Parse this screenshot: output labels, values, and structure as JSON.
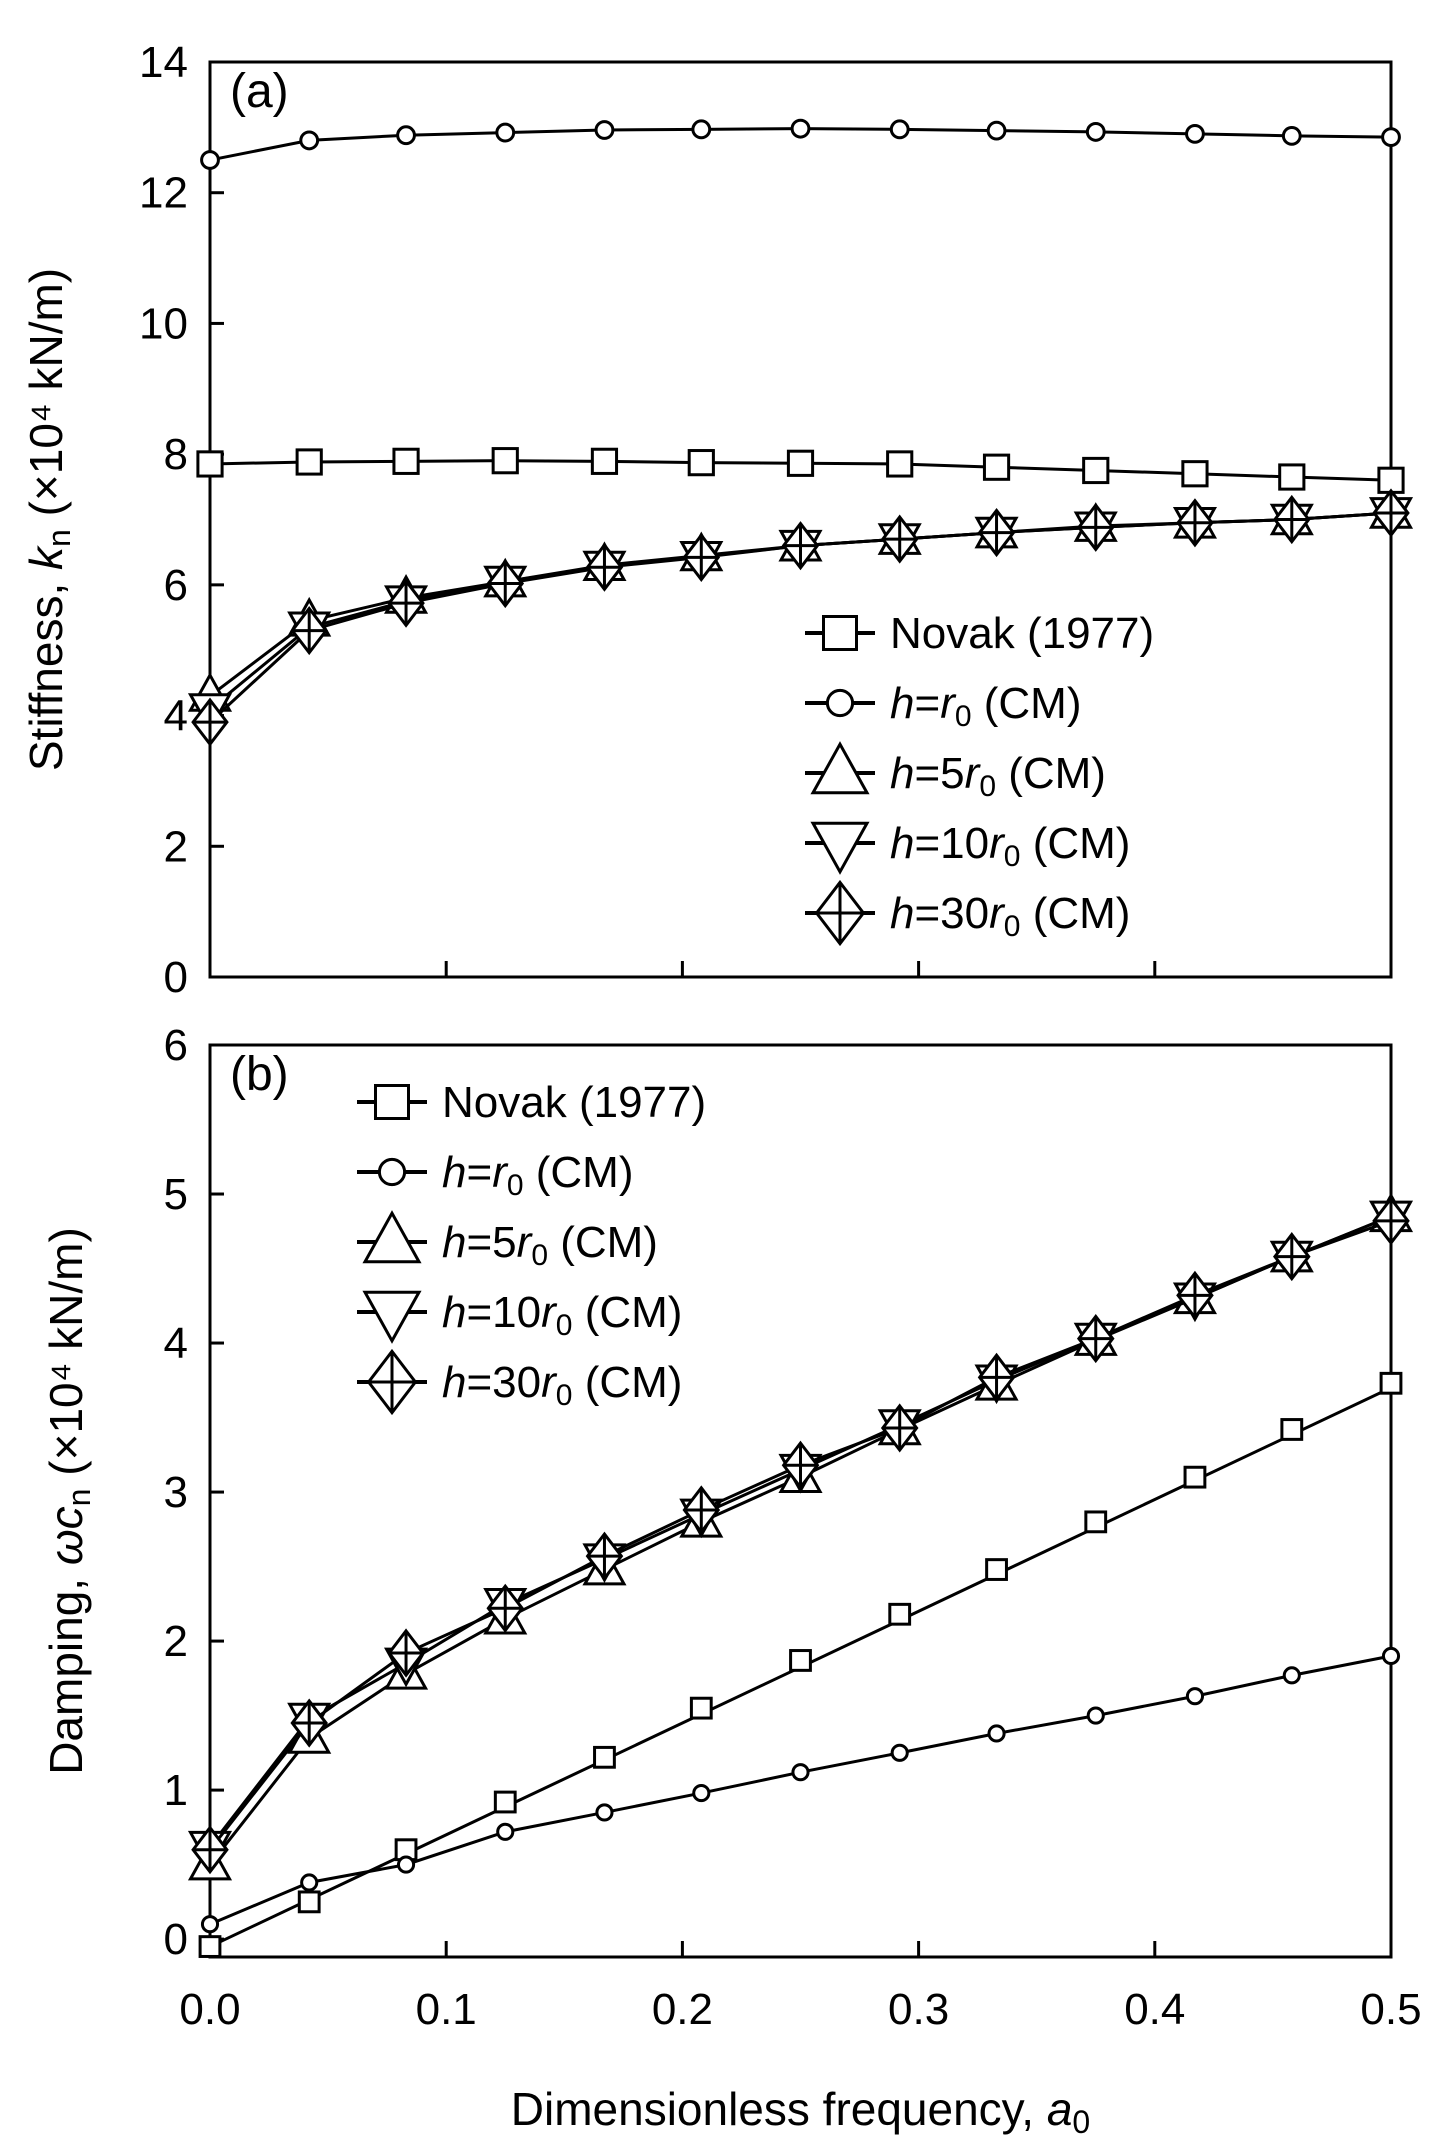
{
  "chart_data": [
    {
      "type": "line",
      "panel_label": "(a)",
      "ylabel": {
        "pre": "Stiffness, ",
        "var": "k",
        "sub": "n",
        "post": " (×10⁴ kN/m)"
      },
      "xlabel": "",
      "ylim": [
        0,
        14
      ],
      "yticks": [
        "0",
        "2",
        "4",
        "6",
        "8",
        "10",
        "12",
        "14"
      ],
      "ytick_values": [
        0,
        2,
        4,
        6,
        8,
        10,
        12,
        14
      ],
      "xlim": [
        0,
        0.5
      ],
      "xtick_values": [
        0,
        0.1,
        0.2,
        0.3,
        0.4,
        0.5
      ],
      "show_xtick_labels": false,
      "legend": "bottom-right",
      "x": [
        0,
        0.042,
        0.083,
        0.125,
        0.167,
        0.208,
        0.25,
        0.292,
        0.333,
        0.375,
        0.417,
        0.458,
        0.5
      ],
      "series": [
        {
          "marker": "square",
          "legend": {
            "plain": "Novak (1977)"
          },
          "values": [
            7.85,
            7.88,
            7.89,
            7.9,
            7.89,
            7.87,
            7.86,
            7.85,
            7.8,
            7.75,
            7.7,
            7.65,
            7.6
          ]
        },
        {
          "marker": "circle",
          "legend": {
            "h": "h",
            "eq": "=",
            "r": "r",
            "sub": "0",
            "post": " (CM)"
          },
          "values": [
            12.5,
            12.8,
            12.88,
            12.92,
            12.96,
            12.97,
            12.98,
            12.97,
            12.95,
            12.93,
            12.9,
            12.87,
            12.85
          ]
        },
        {
          "marker": "triangle-up",
          "legend": {
            "h": "h",
            "eq": "=5",
            "r": "r",
            "sub": "0",
            "post": " (CM)"
          },
          "values": [
            4.3,
            5.45,
            5.8,
            6.05,
            6.3,
            6.45,
            6.6,
            6.7,
            6.8,
            6.9,
            6.95,
            7.0,
            7.1
          ]
        },
        {
          "marker": "triangle-down",
          "legend": {
            "h": "h",
            "eq": "=10",
            "r": "r",
            "sub": "0",
            "post": " (CM)"
          },
          "values": [
            4.1,
            5.35,
            5.75,
            6.05,
            6.28,
            6.43,
            6.6,
            6.7,
            6.8,
            6.88,
            6.95,
            7.0,
            7.1
          ]
        },
        {
          "marker": "diamond-cross",
          "legend": {
            "h": "h",
            "eq": "=30",
            "r": "r",
            "sub": "0",
            "post": " (CM)"
          },
          "values": [
            3.9,
            5.3,
            5.72,
            6.02,
            6.27,
            6.42,
            6.6,
            6.7,
            6.8,
            6.88,
            6.95,
            7.0,
            7.1
          ]
        }
      ]
    },
    {
      "type": "line",
      "panel_label": "(b)",
      "ylabel": {
        "pre": "Damping, ",
        "var": "ωc",
        "sub": "n",
        "post": " (×10⁴ kN/m)"
      },
      "xlabel": {
        "pre": "Dimensionless frequency, ",
        "var": "a",
        "sub": "0"
      },
      "ylim": [
        -0.12,
        6
      ],
      "yticks": [
        "0",
        "1",
        "2",
        "3",
        "4",
        "5",
        "6"
      ],
      "ytick_values": [
        0,
        1,
        2,
        3,
        4,
        5,
        6
      ],
      "xlim": [
        0,
        0.5
      ],
      "xtick_values": [
        0,
        0.1,
        0.2,
        0.3,
        0.4,
        0.5
      ],
      "xticks": [
        "0.0",
        "0.1",
        "0.2",
        "0.3",
        "0.4",
        "0.5"
      ],
      "show_xtick_labels": true,
      "legend": "top-left",
      "x": [
        0,
        0.042,
        0.083,
        0.125,
        0.167,
        0.208,
        0.25,
        0.292,
        0.333,
        0.375,
        0.417,
        0.458,
        0.5
      ],
      "series": [
        {
          "marker": "square",
          "legend": {
            "plain": "Novak (1977)"
          },
          "values": [
            -0.05,
            0.25,
            0.6,
            0.92,
            1.22,
            1.55,
            1.87,
            2.18,
            2.48,
            2.8,
            3.1,
            3.42,
            3.73
          ],
          "fit": [
            -0.05,
            3.7
          ]
        },
        {
          "marker": "circle",
          "legend": {
            "h": "h",
            "eq": "=",
            "r": "r",
            "sub": "0",
            "post": " (CM)"
          },
          "values": [
            0.1,
            0.38,
            0.5,
            0.72,
            0.85,
            0.98,
            1.12,
            1.25,
            1.38,
            1.5,
            1.63,
            1.77,
            1.9
          ]
        },
        {
          "marker": "triangle-up",
          "legend": {
            "h": "h",
            "eq": "=5",
            "r": "r",
            "sub": "0",
            "post": " (CM)"
          },
          "values": [
            0.5,
            1.35,
            1.78,
            2.15,
            2.48,
            2.8,
            3.1,
            3.42,
            3.72,
            4.02,
            4.3,
            4.58,
            4.85
          ]
        },
        {
          "marker": "triangle-down",
          "legend": {
            "h": "h",
            "eq": "=10",
            "r": "r",
            "sub": "0",
            "post": " (CM)"
          },
          "values": [
            0.62,
            1.48,
            1.85,
            2.25,
            2.55,
            2.85,
            3.15,
            3.45,
            3.75,
            4.03,
            4.3,
            4.58,
            4.85
          ]
        },
        {
          "marker": "diamond-cross",
          "legend": {
            "h": "h",
            "eq": "=30",
            "r": "r",
            "sub": "0",
            "post": " (CM)"
          },
          "values": [
            0.6,
            1.45,
            1.92,
            2.22,
            2.57,
            2.88,
            3.18,
            3.43,
            3.77,
            4.03,
            4.32,
            4.58,
            4.82
          ]
        }
      ]
    }
  ]
}
